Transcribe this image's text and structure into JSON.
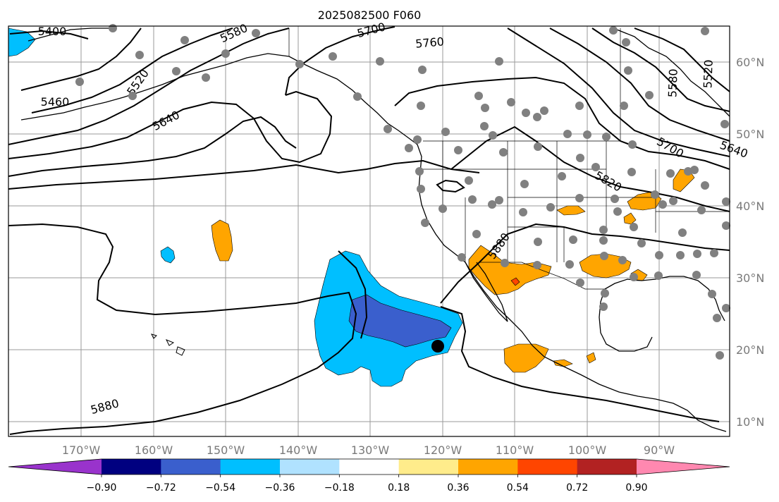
{
  "title": "2025082500 F060",
  "lon_ticks": [
    "170°W",
    "160°W",
    "150°W",
    "140°W",
    "130°W",
    "120°W",
    "110°W",
    "100°W",
    "90°W"
  ],
  "lat_ticks": [
    "60°N",
    "50°N",
    "40°N",
    "30°N",
    "20°N",
    "10°N"
  ],
  "colorbar": {
    "colors": [
      "#9933cc",
      "#000080",
      "#3a5fcd",
      "#00bfff",
      "#b0e2ff",
      "#ffffff",
      "#ffec8b",
      "#ffa500",
      "#ff4500",
      "#b22222",
      "#ff88b0"
    ],
    "labels": [
      "−0.90",
      "−0.72",
      "−0.54",
      "−0.36",
      "−0.18",
      "0.18",
      "0.36",
      "0.54",
      "0.72",
      "0.90"
    ]
  },
  "contour_labels": [
    "5400",
    "5460",
    "5520",
    "5580",
    "5640",
    "5700",
    "5760",
    "5820",
    "5880",
    "5880",
    "5580",
    "5520",
    "5640",
    "5700"
  ],
  "map_colors": {
    "dark_blue": "#3a5fcd",
    "light_blue": "#00bfff",
    "orange": "#ffa500",
    "red": "#ff4500",
    "station": "#808080"
  }
}
